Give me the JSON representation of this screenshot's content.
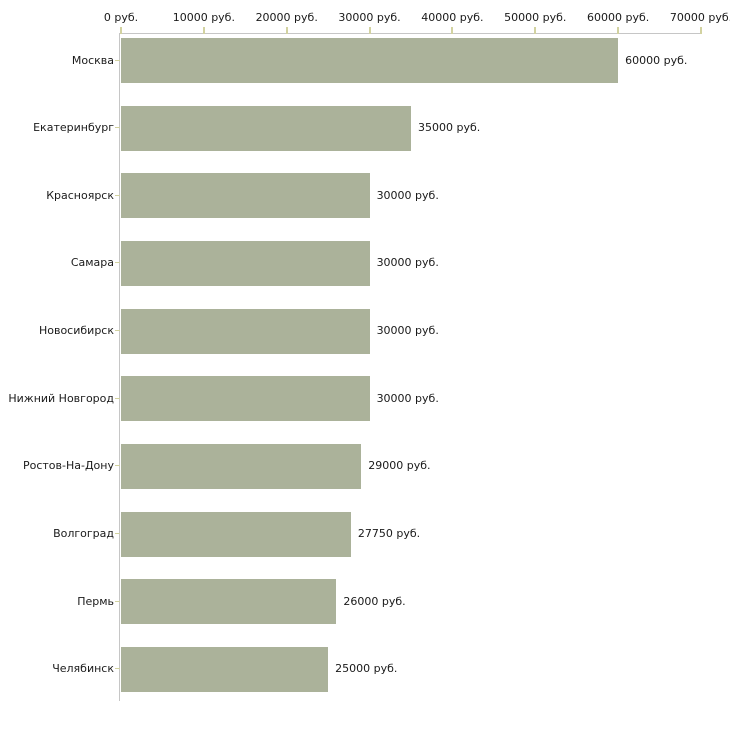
{
  "chart_data": {
    "type": "bar",
    "orientation": "horizontal",
    "title": "",
    "categories": [
      "Москва",
      "Екатеринбург",
      "Красноярск",
      "Самара",
      "Новосибирск",
      "Нижний Новгород",
      "Ростов-На-Дону",
      "Волгоград",
      "Пермь",
      "Челябинск"
    ],
    "values": [
      60000,
      35000,
      30000,
      30000,
      30000,
      30000,
      29000,
      27750,
      26000,
      25000
    ],
    "value_labels": [
      "60000 руб.",
      "35000 руб.",
      "30000 руб.",
      "30000 руб.",
      "30000 руб.",
      "30000 руб.",
      "29000 руб.",
      "27750 руб.",
      "26000 руб.",
      "25000 руб."
    ],
    "x_axis": {
      "position": "top",
      "ticks": [
        0,
        10000,
        20000,
        30000,
        40000,
        50000,
        60000,
        70000
      ],
      "tick_labels": [
        "0 руб.",
        "10000 руб.",
        "20000 руб.",
        "30000 руб.",
        "40000 руб.",
        "50000 руб.",
        "60000 руб.",
        "70000 руб."
      ],
      "xlim": [
        0,
        70000
      ]
    },
    "grid": false,
    "legend": false,
    "colors": {
      "bar": "#abb29a",
      "axis_line": "#c6c6c6",
      "tick": "#d2d2a0",
      "text": "#1a1a1a",
      "background": "#ffffff"
    }
  }
}
